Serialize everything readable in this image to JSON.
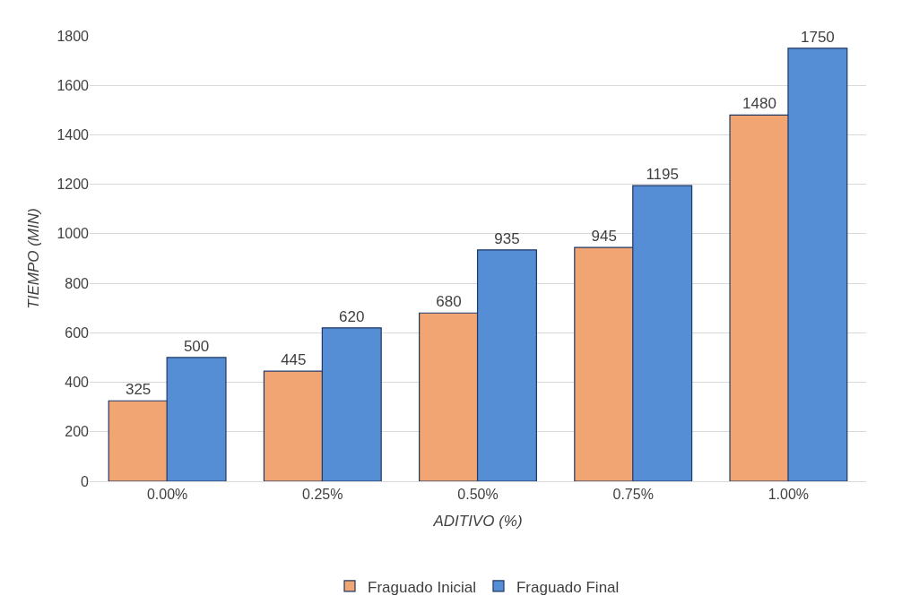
{
  "chart_data": {
    "type": "bar",
    "xlabel": "ADITIVO (%)",
    "ylabel": "TIEMPO (MIN)",
    "categories": [
      "0.00%",
      "0.25%",
      "0.50%",
      "0.75%",
      "1.00%"
    ],
    "series": [
      {
        "name": "Fraguado Inicial",
        "color": "#f0a572",
        "values": [
          325,
          445,
          680,
          945,
          1480
        ]
      },
      {
        "name": "Fraguado Final",
        "color": "#558ed5",
        "values": [
          500,
          620,
          935,
          1195,
          1750
        ]
      }
    ],
    "ylim": [
      0,
      1800
    ],
    "yticks": [
      0,
      200,
      400,
      600,
      800,
      1000,
      1200,
      1400,
      1600,
      1800
    ],
    "grid": "y",
    "legend": "bottom",
    "data_labels": true
  }
}
